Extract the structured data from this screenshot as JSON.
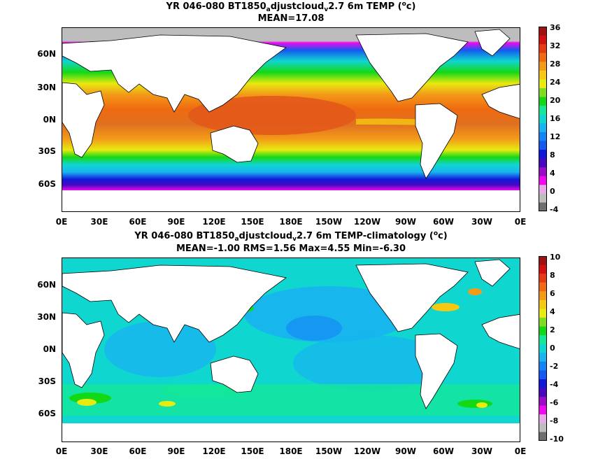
{
  "panel1": {
    "title_a": "YR 046-080 BT1850",
    "title_sub1": "a",
    "title_b": "djustcloud",
    "title_sub2": "v",
    "title_c": "2.7 6m TEMP (",
    "title_sup": "o",
    "title_d": "c)",
    "subtitle": "MEAN=17.08",
    "colorbar_ticks": [
      "36",
      "32",
      "28",
      "24",
      "20",
      "16",
      "12",
      "8",
      "4",
      "0",
      "-4"
    ],
    "colorbar_colors": [
      "#a01010",
      "#d21010",
      "#e83a12",
      "#ef6a10",
      "#f39a18",
      "#f5c812",
      "#e8ea10",
      "#7fdc1e",
      "#13d816",
      "#14e79a",
      "#10d6d0",
      "#18b4f0",
      "#1483f5",
      "#145af0",
      "#1218d8",
      "#4808c0",
      "#9c0ac8",
      "#f008f0",
      "#e8a8e8",
      "#bdbdbd",
      "#6e6e6e"
    ]
  },
  "panel2": {
    "title_a": "YR 046-080 BT1850",
    "title_sub1": "a",
    "title_b": "djustcloud",
    "title_sub2": "v",
    "title_c": "2.7 6m TEMP-climatology (",
    "title_sup": "o",
    "title_d": "c)",
    "subtitle": "MEAN=-1.00   RMS=1.56   Max=4.55   Min=-6.30",
    "colorbar_ticks": [
      "10",
      "8",
      "6",
      "4",
      "2",
      "0",
      "-2",
      "-4",
      "-6",
      "-8",
      "-10"
    ],
    "colorbar_colors": [
      "#a01010",
      "#d21010",
      "#e83a12",
      "#ef6a10",
      "#f39a18",
      "#f5c812",
      "#e8ea10",
      "#7fdc1e",
      "#13d816",
      "#14e79a",
      "#10d6d0",
      "#18b4f0",
      "#1483f5",
      "#145af0",
      "#1218d8",
      "#4808c0",
      "#9c0ac8",
      "#f008f0",
      "#e8a8e8",
      "#bdbdbd",
      "#6e6e6e"
    ]
  },
  "lat_labels": [
    "60N",
    "30N",
    "0N",
    "30S",
    "60S"
  ],
  "lon_labels": [
    "0E",
    "30E",
    "60E",
    "90E",
    "120E",
    "150E",
    "180E",
    "150W",
    "120W",
    "90W",
    "60W",
    "30W",
    "0E"
  ]
}
